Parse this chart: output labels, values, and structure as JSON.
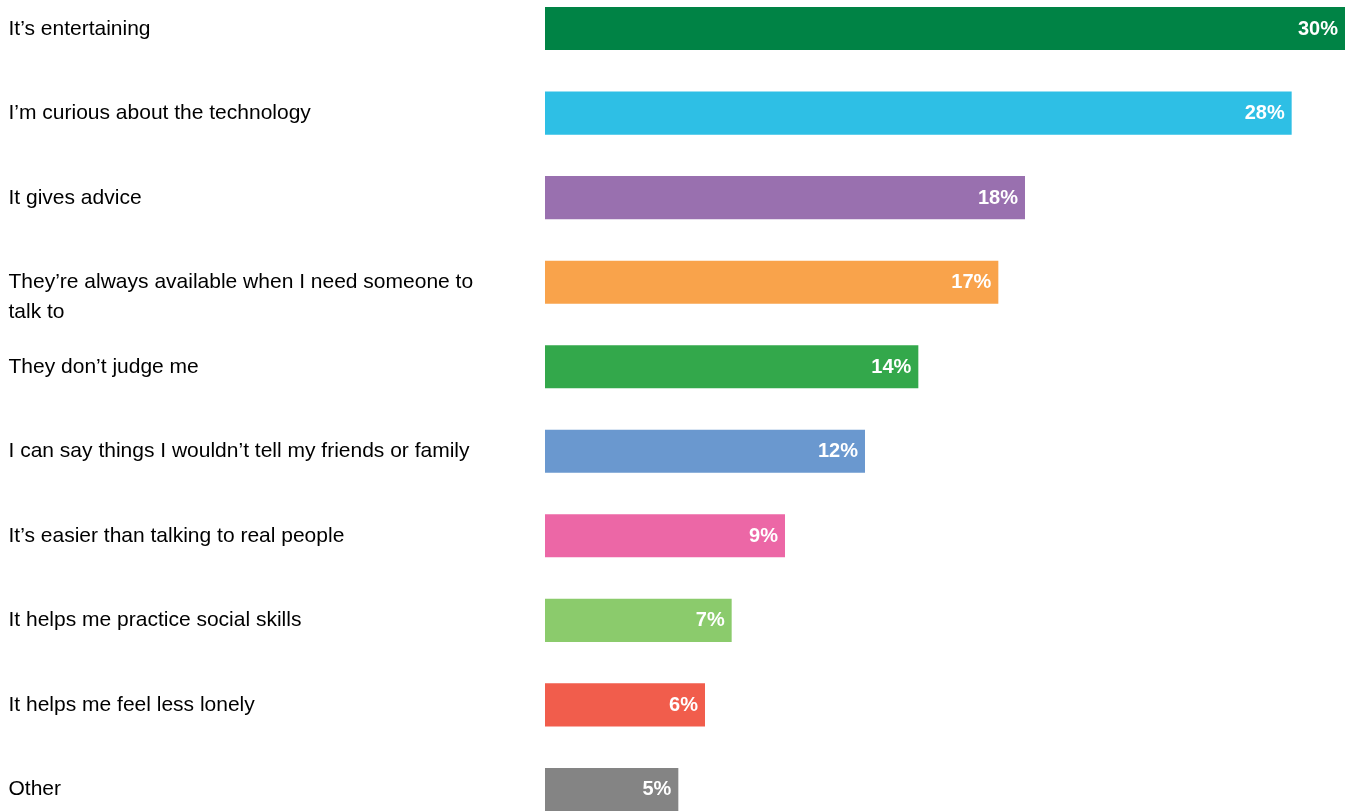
{
  "chart_data": {
    "type": "bar",
    "orientation": "horizontal",
    "tick_labels": "y",
    "categories": [
      "It’s entertaining",
      "I’m curious about the technology",
      "It gives advice",
      "They’re always available when I need someone to talk to",
      "They don’t judge me",
      "I can say things I wouldn’t tell my friends or family",
      "It’s easier than talking to real people",
      "It helps me practice social skills",
      "It helps me feel less lonely",
      "Other"
    ],
    "values": [
      30,
      28,
      18,
      17,
      14,
      12,
      9,
      7,
      6,
      5
    ],
    "colors": [
      "#008345",
      "#2ebfe5",
      "#9970af",
      "#f9a34b",
      "#33a84b",
      "#6a98cf",
      "#ec67a6",
      "#8bcb6c",
      "#f15d4c",
      "#848484"
    ],
    "value_labels": [
      "30%",
      "28%",
      "18%",
      "17%",
      "14%",
      "12%",
      "9%",
      "7%",
      "6%",
      "5%"
    ]
  }
}
